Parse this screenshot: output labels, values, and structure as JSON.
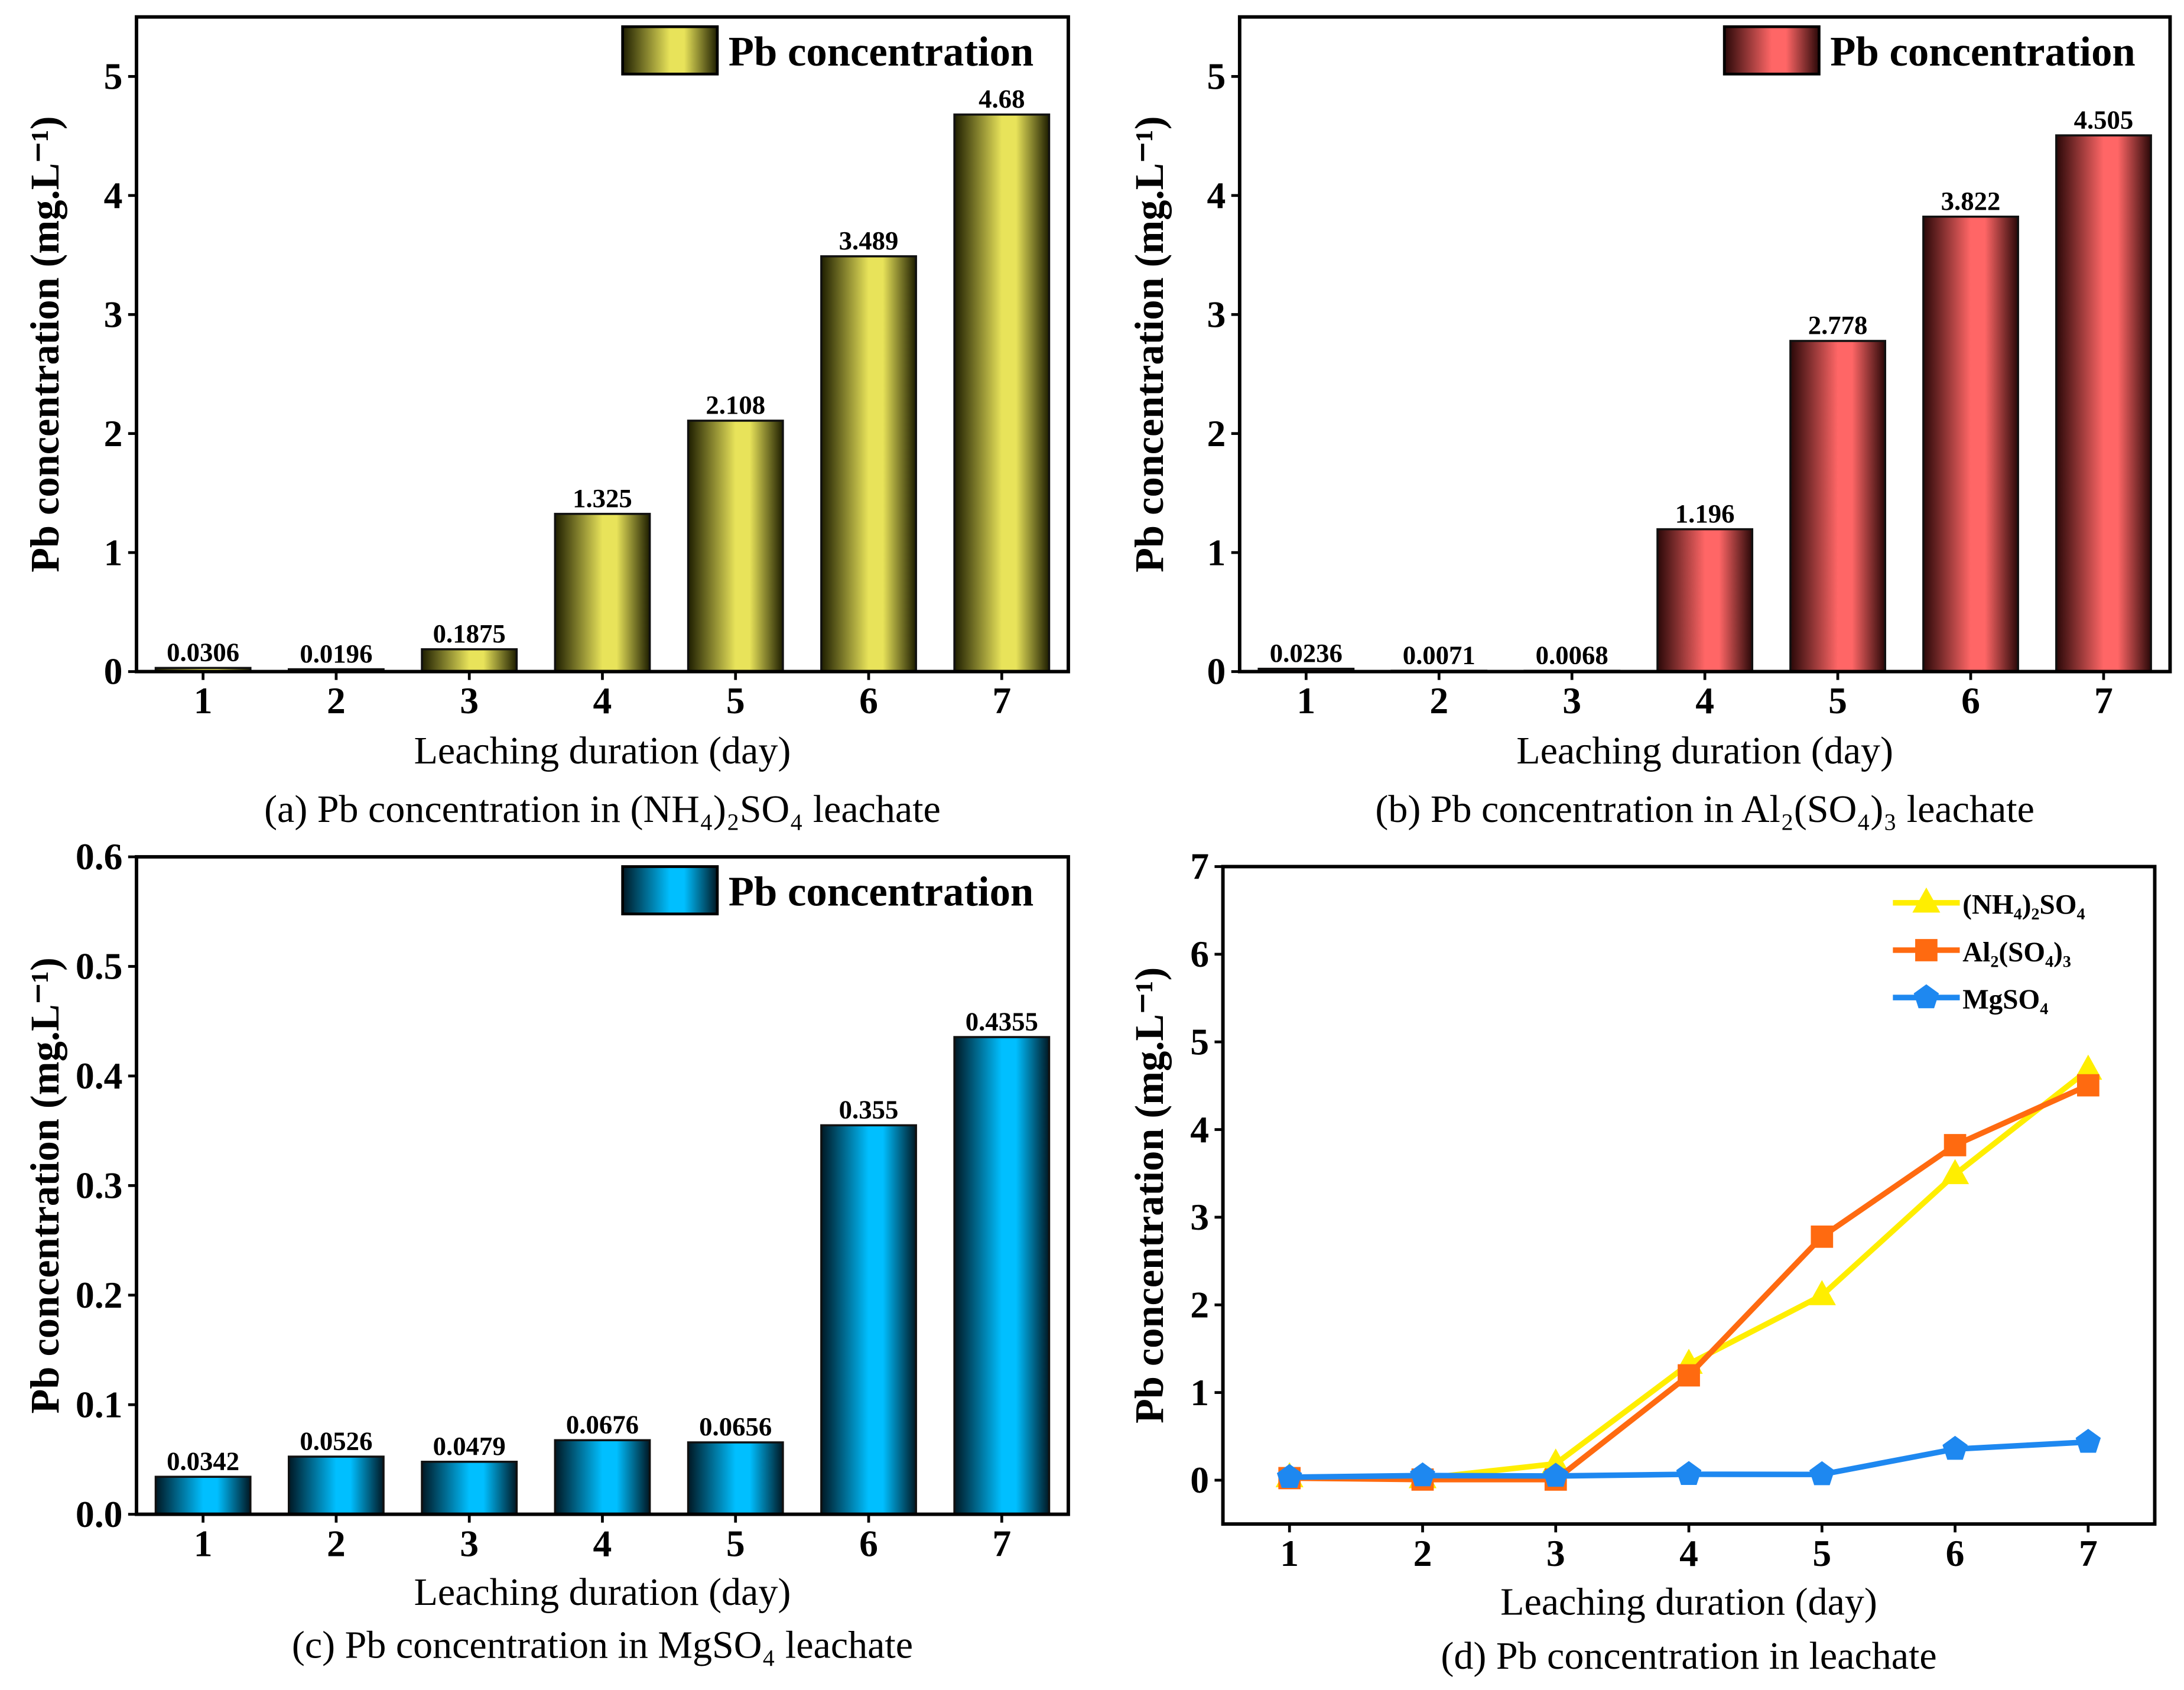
{
  "chart_data": [
    {
      "id": "a",
      "type": "bar",
      "categories": [
        "1",
        "2",
        "3",
        "4",
        "5",
        "6",
        "7"
      ],
      "values": [
        0.0306,
        0.0196,
        0.1875,
        1.325,
        2.108,
        3.489,
        4.68
      ],
      "value_labels": [
        "0.0306",
        "0.0196",
        "0.1875",
        "1.325",
        "2.108",
        "3.489",
        "4.68"
      ],
      "xlabel": "Leaching duration (day)",
      "ylabel": "Pb concentration (mg.L⁻¹)",
      "caption": "(a) Pb concentration in (NH₄)₂SO₄ leachate",
      "yticks": [
        "0",
        "1",
        "2",
        "3",
        "4",
        "5"
      ],
      "ytick_values": [
        0,
        1,
        2,
        3,
        4,
        5
      ],
      "ylim": [
        0,
        5.5
      ],
      "legend": [
        "Pb concentration"
      ],
      "legend_position": "top-right",
      "color": "#e8e35a",
      "edge_color": "#1e1e00"
    },
    {
      "id": "b",
      "type": "bar",
      "categories": [
        "1",
        "2",
        "3",
        "4",
        "5",
        "6",
        "7"
      ],
      "values": [
        0.0236,
        0.0071,
        0.0068,
        1.196,
        2.778,
        3.822,
        4.505
      ],
      "value_labels": [
        "0.0236",
        "0.0071",
        "0.0068",
        "1.196",
        "2.778",
        "3.822",
        "4.505"
      ],
      "xlabel": "Leaching duration (day)",
      "ylabel": "Pb concentration (mg.L⁻¹)",
      "caption": "(b) Pb concentration in Al₂(SO₄)₃ leachate",
      "yticks": [
        "0",
        "1",
        "2",
        "3",
        "4",
        "5"
      ],
      "ytick_values": [
        0,
        1,
        2,
        3,
        4,
        5
      ],
      "ylim": [
        0,
        5.5
      ],
      "legend": [
        "Pb concentration"
      ],
      "legend_position": "top-right",
      "color": "#ff6666",
      "edge_color": "#2a0808"
    },
    {
      "id": "c",
      "type": "bar",
      "categories": [
        "1",
        "2",
        "3",
        "4",
        "5",
        "6",
        "7"
      ],
      "values": [
        0.0342,
        0.0526,
        0.0479,
        0.0676,
        0.0656,
        0.355,
        0.4355
      ],
      "value_labels": [
        "0.0342",
        "0.0526",
        "0.0479",
        "0.0676",
        "0.0656",
        "0.355",
        "0.4355"
      ],
      "xlabel": "Leaching duration (day)",
      "ylabel": "Pb concentration (mg.L⁻¹)",
      "caption": "(c) Pb concentration in MgSO₄  leachate",
      "yticks": [
        "0.0",
        "0.1",
        "0.2",
        "0.3",
        "0.4",
        "0.5",
        "0.6"
      ],
      "ytick_values": [
        0,
        0.1,
        0.2,
        0.3,
        0.4,
        0.5,
        0.6
      ],
      "ylim": [
        0,
        0.6
      ],
      "legend": [
        "Pb concentration"
      ],
      "legend_position": "top-right",
      "color": "#00bfff",
      "edge_color": "#001824"
    },
    {
      "id": "d",
      "type": "line",
      "x": [
        1,
        2,
        3,
        4,
        5,
        6,
        7
      ],
      "xticks": [
        "1",
        "2",
        "3",
        "4",
        "5",
        "6",
        "7"
      ],
      "series": [
        {
          "name": "(NH₄)₂SO₄",
          "values": [
            0.0306,
            0.0196,
            0.1875,
            1.325,
            2.108,
            3.489,
            4.68
          ],
          "color": "#ffee00",
          "marker": "triangle"
        },
        {
          "name": "Al₂(SO₄)₃",
          "values": [
            0.0236,
            0.0071,
            0.0068,
            1.196,
            2.778,
            3.822,
            4.505
          ],
          "color": "#ff6a10",
          "marker": "square"
        },
        {
          "name": "MgSO₄",
          "values": [
            0.0342,
            0.0526,
            0.0479,
            0.0676,
            0.0656,
            0.355,
            0.4355
          ],
          "color": "#1e88f0",
          "marker": "pentagon"
        }
      ],
      "xlabel": "Leaching duration (day)",
      "ylabel": "Pb concentration (mg.L⁻¹)",
      "caption": "(d) Pb concentration in leachate",
      "yticks": [
        "0",
        "1",
        "2",
        "3",
        "4",
        "5",
        "6",
        "7"
      ],
      "ytick_values": [
        0,
        1,
        2,
        3,
        4,
        5,
        6,
        7
      ],
      "ylim": [
        -0.5,
        7
      ],
      "xlim": [
        0.5,
        7.5
      ],
      "legend_position": "top-right"
    }
  ]
}
